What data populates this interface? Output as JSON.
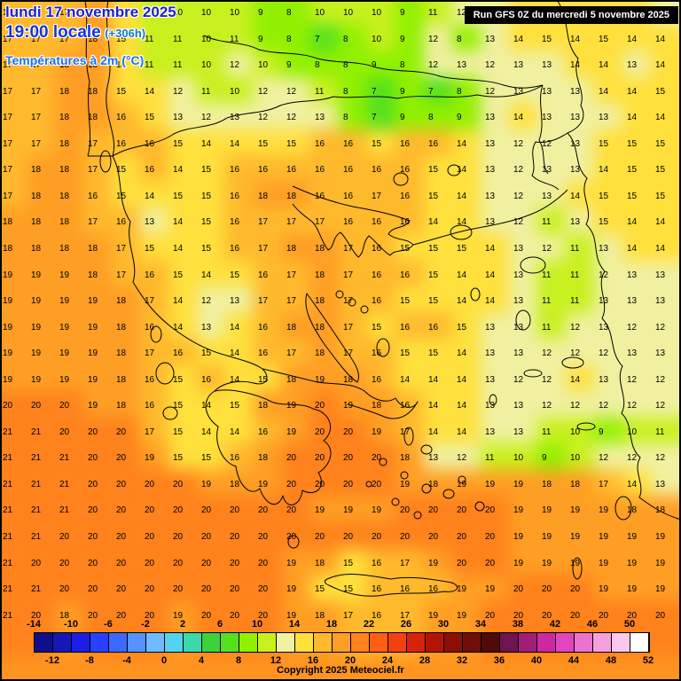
{
  "header": {
    "date": "lundi 17 novembre 2025",
    "time": "19:00 locale",
    "offset": "(+306h)",
    "parameter": "Températures à 2m (°C)"
  },
  "run_info": "Run GFS 0Z du mercredi 5 novembre 2025",
  "copyright": "Copyright 2025 Meteociel.fr",
  "chart_data": {
    "type": "heatmap",
    "title": "Températures à 2m (°C)",
    "unit": "°C",
    "grid_rows": 24,
    "grid_cols": 24,
    "values": [
      [
        17,
        17,
        17,
        18,
        14,
        11,
        10,
        10,
        10,
        9,
        8,
        10,
        10,
        10,
        9,
        11,
        12,
        13,
        14,
        15,
        14,
        14,
        14,
        12
      ],
      [
        17,
        17,
        17,
        18,
        15,
        11,
        11,
        10,
        11,
        9,
        8,
        7,
        8,
        10,
        9,
        12,
        8,
        13,
        14,
        15,
        14,
        15,
        14,
        14
      ],
      [
        17,
        17,
        18,
        18,
        14,
        11,
        11,
        10,
        12,
        10,
        9,
        8,
        8,
        9,
        8,
        12,
        13,
        12,
        13,
        13,
        14,
        14,
        13,
        14
      ],
      [
        17,
        17,
        18,
        18,
        15,
        14,
        12,
        11,
        10,
        12,
        12,
        11,
        8,
        7,
        9,
        7,
        8,
        12,
        13,
        13,
        13,
        14,
        14,
        15
      ],
      [
        17,
        17,
        18,
        18,
        16,
        15,
        13,
        12,
        13,
        12,
        12,
        13,
        8,
        7,
        9,
        8,
        9,
        13,
        14,
        13,
        13,
        13,
        14,
        14
      ],
      [
        17,
        17,
        18,
        17,
        16,
        16,
        15,
        14,
        14,
        15,
        15,
        16,
        16,
        15,
        16,
        16,
        14,
        13,
        12,
        12,
        13,
        15,
        15,
        15
      ],
      [
        17,
        18,
        18,
        17,
        15,
        16,
        14,
        15,
        16,
        16,
        16,
        16,
        16,
        16,
        16,
        15,
        14,
        13,
        12,
        13,
        13,
        14,
        15,
        15
      ],
      [
        17,
        18,
        18,
        16,
        15,
        14,
        15,
        15,
        16,
        18,
        18,
        16,
        16,
        17,
        16,
        15,
        14,
        13,
        12,
        13,
        14,
        15,
        15,
        15
      ],
      [
        18,
        18,
        18,
        17,
        16,
        13,
        14,
        15,
        16,
        17,
        17,
        17,
        16,
        16,
        16,
        14,
        14,
        13,
        12,
        11,
        13,
        15,
        14,
        14
      ],
      [
        18,
        18,
        18,
        18,
        17,
        15,
        14,
        15,
        16,
        17,
        18,
        18,
        17,
        16,
        15,
        15,
        15,
        14,
        13,
        12,
        11,
        13,
        14,
        14
      ],
      [
        19,
        19,
        19,
        18,
        17,
        16,
        15,
        14,
        15,
        16,
        17,
        18,
        17,
        16,
        16,
        15,
        14,
        14,
        13,
        11,
        11,
        12,
        13,
        13
      ],
      [
        19,
        19,
        19,
        19,
        18,
        17,
        14,
        12,
        13,
        17,
        17,
        18,
        17,
        16,
        15,
        15,
        14,
        14,
        13,
        11,
        11,
        13,
        13,
        13
      ],
      [
        19,
        19,
        19,
        19,
        18,
        16,
        14,
        13,
        14,
        16,
        18,
        18,
        17,
        15,
        16,
        16,
        15,
        13,
        13,
        11,
        12,
        13,
        12,
        12
      ],
      [
        19,
        19,
        19,
        19,
        18,
        17,
        16,
        15,
        14,
        16,
        17,
        18,
        17,
        16,
        15,
        15,
        14,
        13,
        13,
        12,
        12,
        12,
        13,
        13
      ],
      [
        19,
        19,
        19,
        19,
        18,
        16,
        15,
        16,
        14,
        15,
        18,
        19,
        18,
        16,
        14,
        14,
        14,
        13,
        12,
        12,
        14,
        13,
        12,
        12
      ],
      [
        20,
        20,
        20,
        19,
        18,
        16,
        15,
        14,
        15,
        18,
        19,
        20,
        19,
        18,
        16,
        14,
        14,
        13,
        13,
        12,
        12,
        12,
        12,
        12
      ],
      [
        21,
        21,
        20,
        20,
        20,
        17,
        15,
        14,
        14,
        16,
        19,
        20,
        20,
        19,
        17,
        14,
        14,
        13,
        13,
        11,
        10,
        9,
        10,
        11
      ],
      [
        21,
        21,
        21,
        20,
        20,
        19,
        15,
        15,
        16,
        18,
        20,
        20,
        20,
        20,
        18,
        13,
        12,
        11,
        10,
        9,
        10,
        12,
        12,
        12
      ],
      [
        21,
        21,
        21,
        20,
        20,
        20,
        20,
        19,
        18,
        19,
        20,
        20,
        20,
        20,
        19,
        18,
        19,
        19,
        19,
        18,
        18,
        17,
        14,
        13
      ],
      [
        21,
        21,
        21,
        20,
        20,
        20,
        20,
        20,
        20,
        20,
        20,
        19,
        19,
        19,
        20,
        20,
        20,
        20,
        19,
        19,
        19,
        19,
        18,
        18
      ],
      [
        21,
        21,
        20,
        20,
        20,
        20,
        20,
        20,
        20,
        20,
        20,
        20,
        20,
        20,
        20,
        20,
        20,
        20,
        19,
        19,
        19,
        19,
        19,
        19
      ],
      [
        21,
        20,
        20,
        20,
        20,
        20,
        20,
        20,
        20,
        20,
        19,
        18,
        15,
        16,
        17,
        19,
        20,
        20,
        19,
        19,
        19,
        19,
        19,
        19
      ],
      [
        21,
        21,
        20,
        20,
        20,
        20,
        20,
        20,
        20,
        20,
        19,
        15,
        15,
        16,
        16,
        16,
        19,
        19,
        20,
        20,
        20,
        19,
        19,
        19
      ],
      [
        21,
        20,
        18,
        20,
        20,
        20,
        19,
        20,
        20,
        20,
        19,
        18,
        17,
        16,
        17,
        19,
        19,
        20,
        20,
        20,
        20,
        20,
        20,
        20
      ]
    ]
  },
  "colorbar": {
    "top_labels": [
      "-14",
      "-10",
      "-6",
      "-2",
      "2",
      "6",
      "10",
      "14",
      "18",
      "22",
      "26",
      "30",
      "34",
      "38",
      "42",
      "46",
      "50"
    ],
    "bottom_labels": [
      "-12",
      "-8",
      "-4",
      "0",
      "4",
      "8",
      "12",
      "16",
      "20",
      "24",
      "28",
      "32",
      "36",
      "40",
      "44",
      "48",
      "52"
    ],
    "cells": [
      {
        "value": -14,
        "color": "#0f0f8c"
      },
      {
        "value": -12,
        "color": "#1616b9"
      },
      {
        "value": -10,
        "color": "#1d1de6"
      },
      {
        "value": -8,
        "color": "#2841ff"
      },
      {
        "value": -6,
        "color": "#3c69ff"
      },
      {
        "value": -4,
        "color": "#5591ff"
      },
      {
        "value": -2,
        "color": "#6ebaff"
      },
      {
        "value": 0,
        "color": "#55d2f0"
      },
      {
        "value": 2,
        "color": "#3cd7aa"
      },
      {
        "value": 4,
        "color": "#3cd23c"
      },
      {
        "value": 6,
        "color": "#55e11e"
      },
      {
        "value": 8,
        "color": "#91f000"
      },
      {
        "value": 10,
        "color": "#c8f01e"
      },
      {
        "value": 12,
        "color": "#f0f0a0"
      },
      {
        "value": 14,
        "color": "#ffe03c"
      },
      {
        "value": 16,
        "color": "#ffb92d"
      },
      {
        "value": 18,
        "color": "#ff9e24"
      },
      {
        "value": 20,
        "color": "#ff821c"
      },
      {
        "value": 22,
        "color": "#ff5f14"
      },
      {
        "value": 24,
        "color": "#f0410f"
      },
      {
        "value": 26,
        "color": "#d7230a"
      },
      {
        "value": 28,
        "color": "#b41405"
      },
      {
        "value": 30,
        "color": "#8c0f05"
      },
      {
        "value": 32,
        "color": "#6e0f0a"
      },
      {
        "value": 34,
        "color": "#500a0a"
      },
      {
        "value": 36,
        "color": "#6e1450"
      },
      {
        "value": 38,
        "color": "#a01e78"
      },
      {
        "value": 40,
        "color": "#cd28a0"
      },
      {
        "value": 42,
        "color": "#e146be"
      },
      {
        "value": 44,
        "color": "#eb73cd"
      },
      {
        "value": 46,
        "color": "#f5a0dc"
      },
      {
        "value": 48,
        "color": "#fac8eb"
      },
      {
        "value": 50,
        "color": "#ffffff"
      }
    ]
  }
}
